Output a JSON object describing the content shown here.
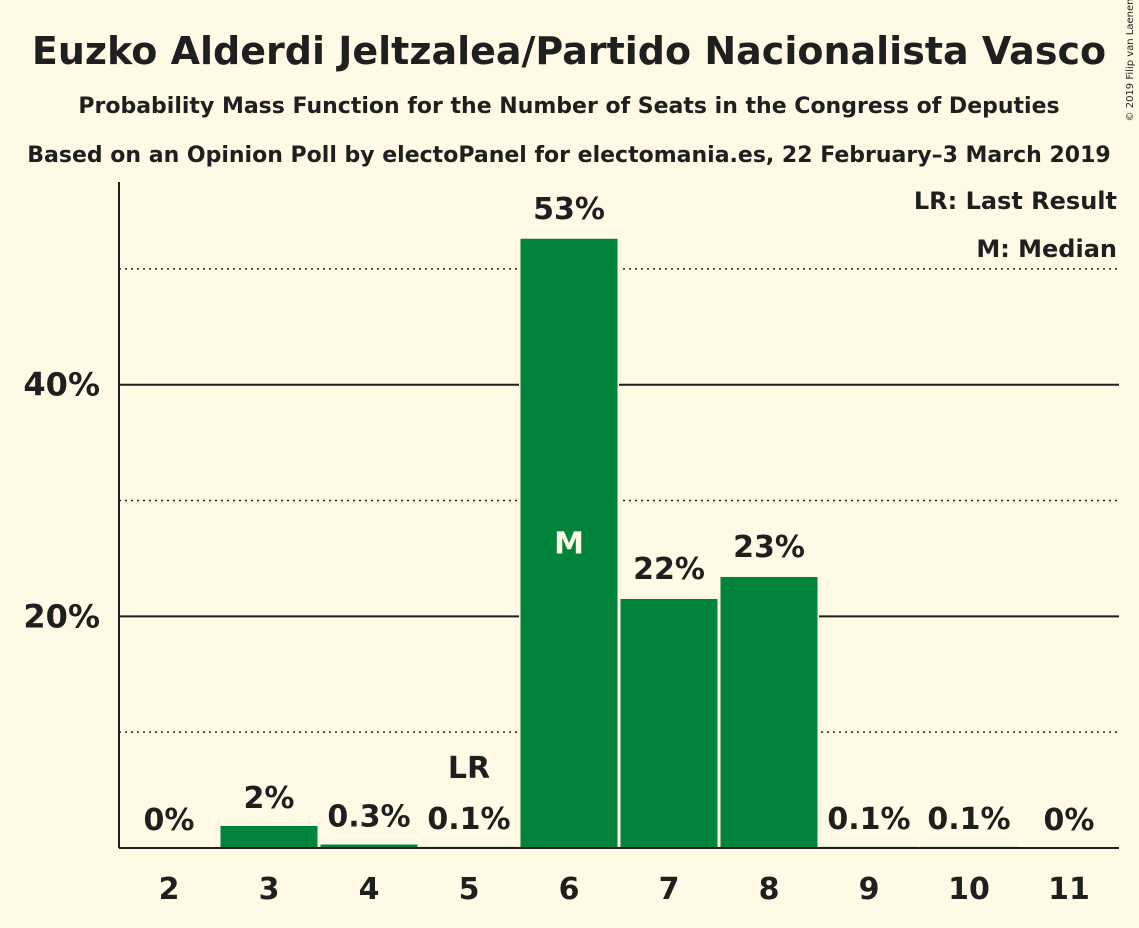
{
  "chart_data": {
    "type": "bar",
    "title": "Euzko Alderdi Jeltzalea/Partido Nacionalista Vasco",
    "subtitle": "Probability Mass Function for the Number of Seats in the Congress of Deputies",
    "subtitle2": "Based on an Opinion Poll by electoPanel for electomania.es, 22 February–3 March 2019",
    "copyright": "© 2019 Filip van Laenen",
    "categories": [
      "2",
      "3",
      "4",
      "5",
      "6",
      "7",
      "8",
      "9",
      "10",
      "11"
    ],
    "values": [
      0,
      1.9,
      0.3,
      0.1,
      52.6,
      21.5,
      23.4,
      0.1,
      0.1,
      0
    ],
    "value_labels": [
      "0%",
      "2%",
      "0.3%",
      "0.1%",
      "53%",
      "22%",
      "23%",
      "0.1%",
      "0.1%",
      "0%"
    ],
    "ylim": [
      0,
      57.5
    ],
    "yticks": [
      {
        "value": 20,
        "label": "20%"
      },
      {
        "value": 40,
        "label": "40%"
      }
    ],
    "minor_gridlines": [
      10,
      30,
      50
    ],
    "last_result": {
      "category": "5",
      "label": "LR"
    },
    "median": {
      "category": "6",
      "label": "M"
    },
    "legend": {
      "placement": "top-right",
      "items": [
        "LR: Last Result",
        "M: Median"
      ]
    },
    "bar_color": "#00843d",
    "background_color": "#fff9e5",
    "grid_color": "#1f1f1f",
    "xlabel": "",
    "ylabel": ""
  }
}
